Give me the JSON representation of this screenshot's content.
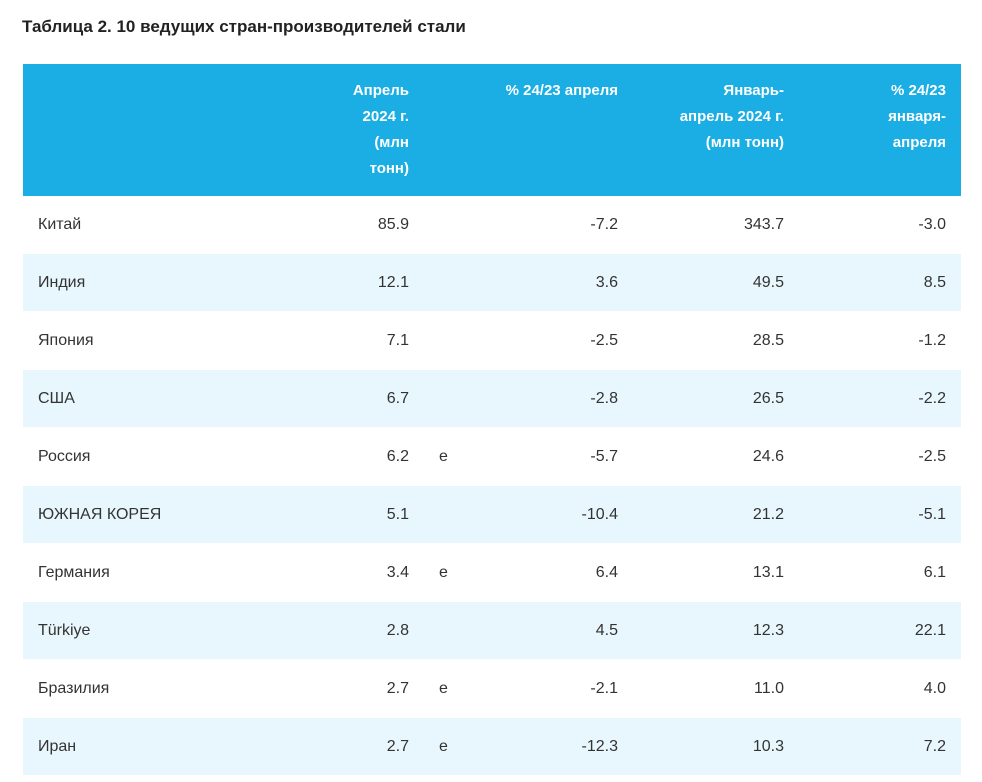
{
  "title": "Таблица 2. 10 ведущих стран-производителей стали",
  "table": {
    "headers": {
      "country": "",
      "april_lines": [
        "Апрель",
        "2024 г.",
        "(млн",
        "тонн)"
      ],
      "pct_apr_lines": [
        "% 24/23 апреля"
      ],
      "ytd_lines": [
        "Январь-",
        "апрель 2024 г.",
        "(млн тонн)"
      ],
      "pct_ytd_lines": [
        "% 24/23",
        "января-",
        "апреля"
      ]
    },
    "rows": [
      {
        "country": "Китай",
        "april": "85.9",
        "flag": "",
        "pct_apr": "-7.2",
        "ytd": "343.7",
        "pct_ytd": "-3.0"
      },
      {
        "country": "Индия",
        "april": "12.1",
        "flag": "",
        "pct_apr": "3.6",
        "ytd": "49.5",
        "pct_ytd": "8.5"
      },
      {
        "country": "Япония",
        "april": "7.1",
        "flag": "",
        "pct_apr": "-2.5",
        "ytd": "28.5",
        "pct_ytd": "-1.2"
      },
      {
        "country": "США",
        "april": "6.7",
        "flag": "",
        "pct_apr": "-2.8",
        "ytd": "26.5",
        "pct_ytd": "-2.2"
      },
      {
        "country": "Россия",
        "april": "6.2",
        "flag": "e",
        "pct_apr": "-5.7",
        "ytd": "24.6",
        "pct_ytd": "-2.5"
      },
      {
        "country": "ЮЖНАЯ КОРЕЯ",
        "april": "5.1",
        "flag": "",
        "pct_apr": "-10.4",
        "ytd": "21.2",
        "pct_ytd": "-5.1"
      },
      {
        "country": "Германия",
        "april": "3.4",
        "flag": "e",
        "pct_apr": "6.4",
        "ytd": "13.1",
        "pct_ytd": "6.1"
      },
      {
        "country": "Türkiye",
        "april": "2.8",
        "flag": "",
        "pct_apr": "4.5",
        "ytd": "12.3",
        "pct_ytd": "22.1"
      },
      {
        "country": "Бразилия",
        "april": "2.7",
        "flag": "e",
        "pct_apr": "-2.1",
        "ytd": "11.0",
        "pct_ytd": "4.0"
      },
      {
        "country": "Иран",
        "april": "2.7",
        "flag": "e",
        "pct_apr": "-12.3",
        "ytd": "10.3",
        "pct_ytd": "7.2"
      }
    ]
  },
  "colors": {
    "header_bg": "#1aaee4",
    "stripe_bg": "#e8f7fd",
    "text": "#333333"
  }
}
